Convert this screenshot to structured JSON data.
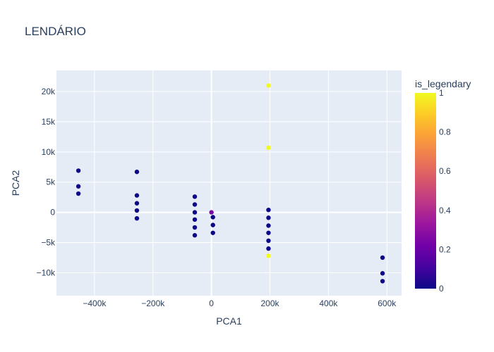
{
  "chart_data": {
    "type": "scatter",
    "title": "LENDÁRIO",
    "xlabel": "PCA1",
    "ylabel": "PCA2",
    "xlim": [
      -530000,
      650000
    ],
    "ylim": [
      -13800,
      23500
    ],
    "x_ticks": [
      -400000,
      -200000,
      0,
      200000,
      400000,
      600000
    ],
    "x_tick_labels": [
      "−400k",
      "−200k",
      "0",
      "200k",
      "400k",
      "600k"
    ],
    "y_ticks": [
      -10000,
      -5000,
      0,
      5000,
      10000,
      15000,
      20000
    ],
    "y_tick_labels": [
      "−10k",
      "−5k",
      "0",
      "5k",
      "10k",
      "15k",
      "20k"
    ],
    "grid": true,
    "colorbar": {
      "title": "is_legendary",
      "range": [
        0,
        1
      ],
      "ticks": [
        0,
        0.2,
        0.4,
        0.6,
        0.8,
        1
      ],
      "tick_labels": [
        "0",
        "0.2",
        "0.4",
        "0.6",
        "0.8",
        "1"
      ]
    },
    "colors": {
      "plot_bg": "#e5ecf6",
      "grid": "#ffffff",
      "text": "#2a3f5f",
      "colorscale": [
        "#0d0887",
        "#46039f",
        "#7201a8",
        "#9c179e",
        "#bd3786",
        "#d8576b",
        "#ed7953",
        "#fb9f3a",
        "#fdca26",
        "#f0f921"
      ]
    },
    "points": [
      {
        "x": -455000,
        "y": 6900,
        "c": 0
      },
      {
        "x": -455000,
        "y": 4300,
        "c": 0
      },
      {
        "x": -455000,
        "y": 3100,
        "c": 0
      },
      {
        "x": -255000,
        "y": 6700,
        "c": 0
      },
      {
        "x": -255000,
        "y": 2800,
        "c": 0
      },
      {
        "x": -255000,
        "y": 1500,
        "c": 0
      },
      {
        "x": -255000,
        "y": 300,
        "c": 0
      },
      {
        "x": -255000,
        "y": -1000,
        "c": 0
      },
      {
        "x": -57000,
        "y": 2600,
        "c": 0
      },
      {
        "x": -57000,
        "y": 1300,
        "c": 0
      },
      {
        "x": -57000,
        "y": 0,
        "c": 0
      },
      {
        "x": -57000,
        "y": -1200,
        "c": 0
      },
      {
        "x": -57000,
        "y": -2500,
        "c": 0
      },
      {
        "x": -57000,
        "y": -3800,
        "c": 0
      },
      {
        "x": 0,
        "y": 0,
        "c": 0.25
      },
      {
        "x": 5000,
        "y": -800,
        "c": 0
      },
      {
        "x": 5000,
        "y": -2100,
        "c": 0
      },
      {
        "x": 5000,
        "y": -3400,
        "c": 0
      },
      {
        "x": 195000,
        "y": 21000,
        "c": 1
      },
      {
        "x": 195000,
        "y": 10700,
        "c": 1
      },
      {
        "x": 195000,
        "y": 400,
        "c": 0
      },
      {
        "x": 195000,
        "y": -900,
        "c": 0
      },
      {
        "x": 195000,
        "y": -2200,
        "c": 0
      },
      {
        "x": 195000,
        "y": -3400,
        "c": 0
      },
      {
        "x": 195000,
        "y": -4700,
        "c": 0
      },
      {
        "x": 195000,
        "y": -6000,
        "c": 0
      },
      {
        "x": 195000,
        "y": -7200,
        "c": 1
      },
      {
        "x": 585000,
        "y": -7500,
        "c": 0
      },
      {
        "x": 585000,
        "y": -10100,
        "c": 0
      },
      {
        "x": 585000,
        "y": -11400,
        "c": 0
      }
    ]
  }
}
